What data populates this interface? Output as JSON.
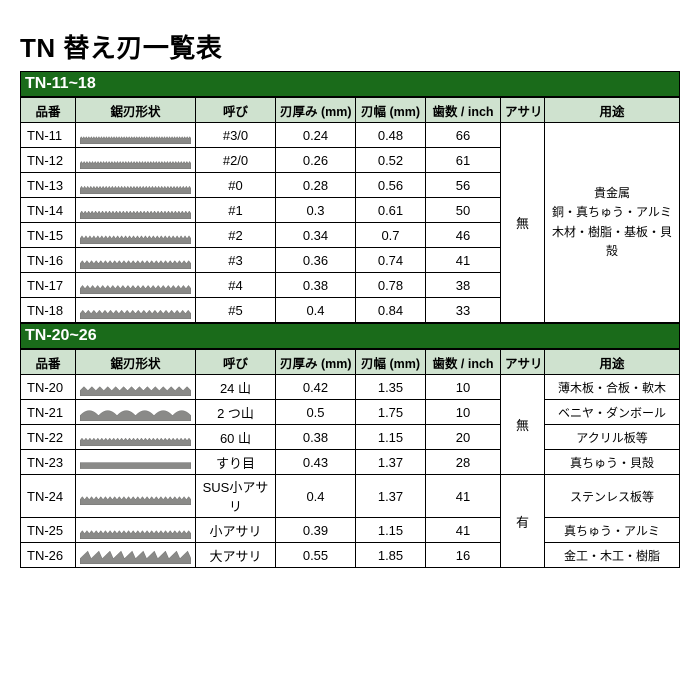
{
  "page": {
    "title": "TN 替え刃一覧表"
  },
  "columns": {
    "part": "品番",
    "shape": "鋸刃形状",
    "size": "呼び",
    "thick": "刃厚み (mm)",
    "width": "刃幅 (mm)",
    "tpi": "歯数 / inch",
    "asari": "アサリ",
    "use": "用途"
  },
  "section1": {
    "header": "TN-11~18",
    "asari": "無",
    "use": "貴金属\n銅・真ちゅう・アルミ\n木材・樹脂・基板・貝殻",
    "rows": [
      {
        "part": "TN-11",
        "size": "#3/0",
        "thick": "0.24",
        "width": "0.48",
        "tpi": "66"
      },
      {
        "part": "TN-12",
        "size": "#2/0",
        "thick": "0.26",
        "width": "0.52",
        "tpi": "61"
      },
      {
        "part": "TN-13",
        "size": "#0",
        "thick": "0.28",
        "width": "0.56",
        "tpi": "56"
      },
      {
        "part": "TN-14",
        "size": "#1",
        "thick": "0.3",
        "width": "0.61",
        "tpi": "50"
      },
      {
        "part": "TN-15",
        "size": "#2",
        "thick": "0.34",
        "width": "0.7",
        "tpi": "46"
      },
      {
        "part": "TN-16",
        "size": "#3",
        "thick": "0.36",
        "width": "0.74",
        "tpi": "41"
      },
      {
        "part": "TN-17",
        "size": "#4",
        "thick": "0.38",
        "width": "0.78",
        "tpi": "38"
      },
      {
        "part": "TN-18",
        "size": "#5",
        "thick": "0.4",
        "width": "0.84",
        "tpi": "33"
      }
    ],
    "blade_params": [
      {
        "teeth": 44,
        "height": 2
      },
      {
        "teeth": 40,
        "height": 2.2
      },
      {
        "teeth": 36,
        "height": 2.4
      },
      {
        "teeth": 32,
        "height": 2.6
      },
      {
        "teeth": 28,
        "height": 2.8
      },
      {
        "teeth": 24,
        "height": 3.0
      },
      {
        "teeth": 22,
        "height": 3.2
      },
      {
        "teeth": 20,
        "height": 3.4
      }
    ]
  },
  "section2": {
    "header": "TN-20~26",
    "rows": [
      {
        "part": "TN-20",
        "size": "24 山",
        "thick": "0.42",
        "width": "1.35",
        "tpi": "10",
        "use": "薄木板・合板・軟木"
      },
      {
        "part": "TN-21",
        "size": "2 つ山",
        "thick": "0.5",
        "width": "1.75",
        "tpi": "10",
        "use": "ベニヤ・ダンボール"
      },
      {
        "part": "TN-22",
        "size": "60 山",
        "thick": "0.38",
        "width": "1.15",
        "tpi": "20",
        "use": "アクリル板等"
      },
      {
        "part": "TN-23",
        "size": "すり目",
        "thick": "0.43",
        "width": "1.37",
        "tpi": "28",
        "use": "真ちゅう・貝殻"
      },
      {
        "part": "TN-24",
        "size": "SUS小アサリ",
        "thick": "0.4",
        "width": "1.37",
        "tpi": "41",
        "use": "ステンレス板等"
      },
      {
        "part": "TN-25",
        "size": "小アサリ",
        "thick": "0.39",
        "width": "1.15",
        "tpi": "41",
        "use": "真ちゅう・アルミ"
      },
      {
        "part": "TN-26",
        "size": "大アサリ",
        "thick": "0.55",
        "width": "1.85",
        "tpi": "16",
        "use": "金工・木工・樹脂"
      }
    ],
    "asari_groups": [
      {
        "label": "無",
        "span": 4
      },
      {
        "label": "有",
        "span": 3
      }
    ],
    "blade_params": [
      {
        "teeth": 14,
        "height": 4,
        "style": "tri"
      },
      {
        "teeth": 6,
        "height": 5,
        "style": "wave"
      },
      {
        "teeth": 28,
        "height": 2.5,
        "style": "tri"
      },
      {
        "teeth": 0,
        "height": 0,
        "style": "flat"
      },
      {
        "teeth": 24,
        "height": 3,
        "style": "tri"
      },
      {
        "teeth": 24,
        "height": 3,
        "style": "tri"
      },
      {
        "teeth": 10,
        "height": 5,
        "style": "shark"
      }
    ]
  },
  "colors": {
    "header_bg": "#1a6b1a",
    "th_bg": "#cfe2cf",
    "blade_fill": "#8a8a88",
    "blade_stroke": "#5a5a58"
  }
}
